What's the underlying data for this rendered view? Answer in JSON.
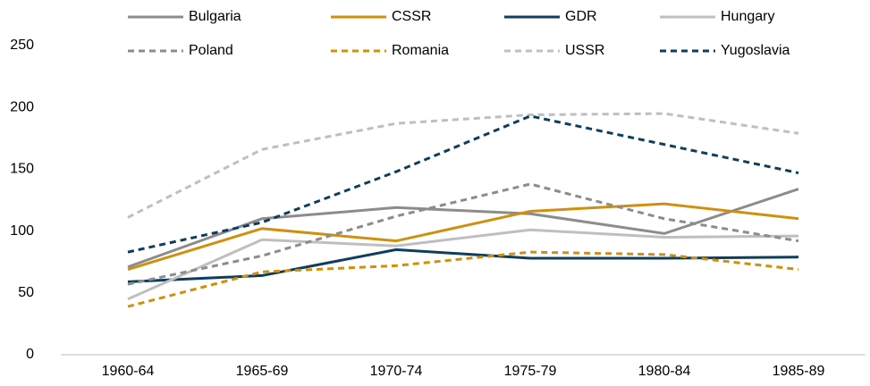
{
  "chart_data": {
    "type": "line",
    "categories": [
      "1960-64",
      "1965-69",
      "1970-74",
      "1975-79",
      "1980-84",
      "1985-89"
    ],
    "series": [
      {
        "name": "Bulgaria",
        "color": "#8c8c8c",
        "style": "solid",
        "values": [
          71,
          110,
          119,
          114,
          98,
          134
        ]
      },
      {
        "name": "CSSR",
        "color": "#d18f0f",
        "style": "solid",
        "values": [
          69,
          102,
          92,
          116,
          122,
          110
        ]
      },
      {
        "name": "GDR",
        "color": "#0e3e5e",
        "style": "solid",
        "values": [
          59,
          64,
          85,
          78,
          78,
          79
        ]
      },
      {
        "name": "Hungary",
        "color": "#bfbfbf",
        "style": "solid",
        "values": [
          45,
          93,
          88,
          101,
          95,
          96
        ]
      },
      {
        "name": "Poland",
        "color": "#8c8c8c",
        "style": "dashed",
        "values": [
          57,
          80,
          112,
          138,
          110,
          92
        ]
      },
      {
        "name": "Romania",
        "color": "#d18f0f",
        "style": "dashed",
        "values": [
          39,
          67,
          72,
          83,
          81,
          69
        ]
      },
      {
        "name": "USSR",
        "color": "#bfbfbf",
        "style": "dashed",
        "values": [
          111,
          166,
          187,
          194,
          195,
          179
        ]
      },
      {
        "name": "Yugoslavia",
        "color": "#0e3e5e",
        "style": "dashed",
        "values": [
          83,
          107,
          148,
          193,
          170,
          147
        ]
      }
    ],
    "ylim": [
      0,
      250
    ],
    "yticks": [
      0,
      50,
      100,
      150,
      200,
      250
    ],
    "grid": false,
    "legend": "top"
  }
}
